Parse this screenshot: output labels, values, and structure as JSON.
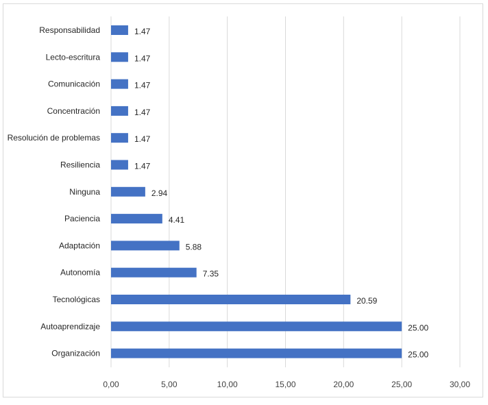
{
  "chart_data": {
    "type": "bar",
    "orientation": "horizontal",
    "categories": [
      "Responsabilidad",
      "Lecto-escritura",
      "Comunicación",
      "Concentración",
      "Resolución de problemas",
      "Resiliencia",
      "Ninguna",
      "Paciencia",
      "Adaptación",
      "Autonomía",
      "Tecnológicas",
      "Autoaprendizaje",
      "Organización"
    ],
    "values": [
      1.47,
      1.47,
      1.47,
      1.47,
      1.47,
      1.47,
      2.94,
      4.41,
      5.88,
      7.35,
      20.59,
      25.0,
      25.0
    ],
    "value_labels": [
      "1.47",
      "1.47",
      "1.47",
      "1.47",
      "1.47",
      "1.47",
      "2.94",
      "4.41",
      "5.88",
      "7.35",
      "20.59",
      "25.00",
      "25.00"
    ],
    "xlim": [
      0,
      30
    ],
    "x_ticks": [
      0,
      5,
      10,
      15,
      20,
      25,
      30
    ],
    "x_tick_labels": [
      "0,00",
      "5,00",
      "10,00",
      "15,00",
      "20,00",
      "25,00",
      "30,00"
    ],
    "title": "",
    "xlabel": "",
    "ylabel": "",
    "grid": "vertical",
    "legend": "none",
    "colors": {
      "bar": "#4472c4",
      "grid": "#d9d9d9",
      "text": "#262626",
      "border": "#d9d9d9"
    }
  }
}
